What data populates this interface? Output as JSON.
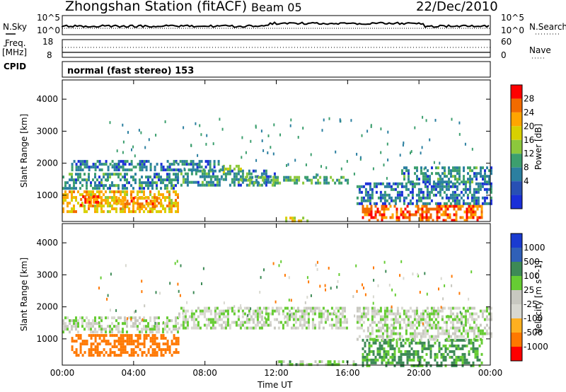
{
  "header": {
    "station": "Zhongshan Station (fitACF)",
    "beam": "Beam 05",
    "date": "22/Dec/2010"
  },
  "top_panels": {
    "nsky_label": "N.Sky",
    "nsky_top": "10^5",
    "nsky_bottom": "10^0",
    "nsearch_label": "N.Search",
    "nsearch_top": "10^5",
    "nsearch_bottom": "10^0",
    "freq_label_line1": "Freq.",
    "freq_label_line2": "[MHz]",
    "freq_top": "18",
    "freq_bottom": "8",
    "nave_label": "Nave",
    "nave_top": "60",
    "nave_bottom": "0",
    "cpid_label": "CPID",
    "cpid_text": "normal (fast stereo) 153"
  },
  "axes": {
    "xlabel": "Time UT",
    "ylabel": "Slant Range [km]",
    "x_ticks": [
      "00:00",
      "04:00",
      "08:00",
      "12:00",
      "16:00",
      "20:00",
      "00:00"
    ],
    "y_ticks": [
      "4000",
      "3000",
      "2000",
      "1000"
    ]
  },
  "power_scale": {
    "label": "Power [dB]",
    "ticks": [
      "28",
      "24",
      "20",
      "16",
      "12",
      "8",
      "4"
    ],
    "colors": [
      "#ff0000",
      "#f26b00",
      "#ffa500",
      "#d8d000",
      "#8cc83c",
      "#3c9f6e",
      "#2b7fa0",
      "#2850b4",
      "#1a2fd8"
    ]
  },
  "velocity_scale": {
    "label": "Velocity [m s^-1]",
    "ticks": [
      "1000",
      "500",
      "100",
      "25",
      "-25",
      "-100",
      "-500",
      "-1000"
    ],
    "colors": [
      "#1a3bd0",
      "#3060b8",
      "#3d8a56",
      "#66cc33",
      "#c8c8c0",
      "#d8d8d0",
      "#ffb020",
      "#ff7800",
      "#ff0000"
    ]
  },
  "chart_data": [
    {
      "type": "heatmap",
      "title": "Power",
      "xlabel": "Time UT",
      "ylabel": "Slant Range [km]",
      "xlim": [
        "00:00",
        "24:00"
      ],
      "ylim": [
        180,
        4600
      ],
      "colorbar": {
        "label": "Power [dB]",
        "range": [
          0,
          30
        ]
      },
      "bands": [
        {
          "t": [
            0.0,
            6.5
          ],
          "r": [
            1200,
            1700
          ],
          "v": 8
        },
        {
          "t": [
            0.0,
            6.5
          ],
          "r": [
            500,
            1150
          ],
          "v": 20
        },
        {
          "t": [
            1.0,
            2.0
          ],
          "r": [
            700,
            1000
          ],
          "v": 26
        },
        {
          "t": [
            3.0,
            5.5
          ],
          "r": [
            600,
            950
          ],
          "v": 24
        },
        {
          "t": [
            6.5,
            12.0
          ],
          "r": [
            1300,
            1800
          ],
          "v": 8
        },
        {
          "t": [
            9.0,
            10.0
          ],
          "r": [
            1700,
            1950
          ],
          "v": 16
        },
        {
          "t": [
            0.5,
            9.0
          ],
          "r": [
            1800,
            2100
          ],
          "v": 6
        },
        {
          "t": [
            10.0,
            16.0
          ],
          "r": [
            1350,
            1600
          ],
          "v": 10
        },
        {
          "t": [
            12.5,
            14.0
          ],
          "r": [
            230,
            330
          ],
          "v": 18
        },
        {
          "t": [
            16.8,
            23.5
          ],
          "r": [
            200,
            700
          ],
          "v": 26
        },
        {
          "t": [
            16.5,
            24.0
          ],
          "r": [
            700,
            1400
          ],
          "v": 6
        },
        {
          "t": [
            19.0,
            24.0
          ],
          "r": [
            1400,
            1900
          ],
          "v": 8
        }
      ]
    },
    {
      "type": "heatmap",
      "title": "Velocity",
      "xlabel": "Time UT",
      "ylabel": "Slant Range [km]",
      "xlim": [
        "00:00",
        "24:00"
      ],
      "ylim": [
        180,
        4600
      ],
      "colorbar": {
        "label": "Velocity [m s^-1]",
        "range": [
          -1000,
          1000
        ]
      },
      "bands": [
        {
          "t": [
            0.0,
            6.5
          ],
          "r": [
            1200,
            1700
          ],
          "v": 0
        },
        {
          "t": [
            0.5,
            6.5
          ],
          "r": [
            450,
            1150
          ],
          "v": -400
        },
        {
          "t": [
            6.5,
            16.0
          ],
          "r": [
            1300,
            2000
          ],
          "v": 0
        },
        {
          "t": [
            12.0,
            16.5
          ],
          "r": [
            200,
            330
          ],
          "v": 60
        },
        {
          "t": [
            16.8,
            23.5
          ],
          "r": [
            200,
            1000
          ],
          "v": 120
        },
        {
          "t": [
            16.5,
            24.0
          ],
          "r": [
            1000,
            2000
          ],
          "v": 0
        }
      ]
    }
  ]
}
